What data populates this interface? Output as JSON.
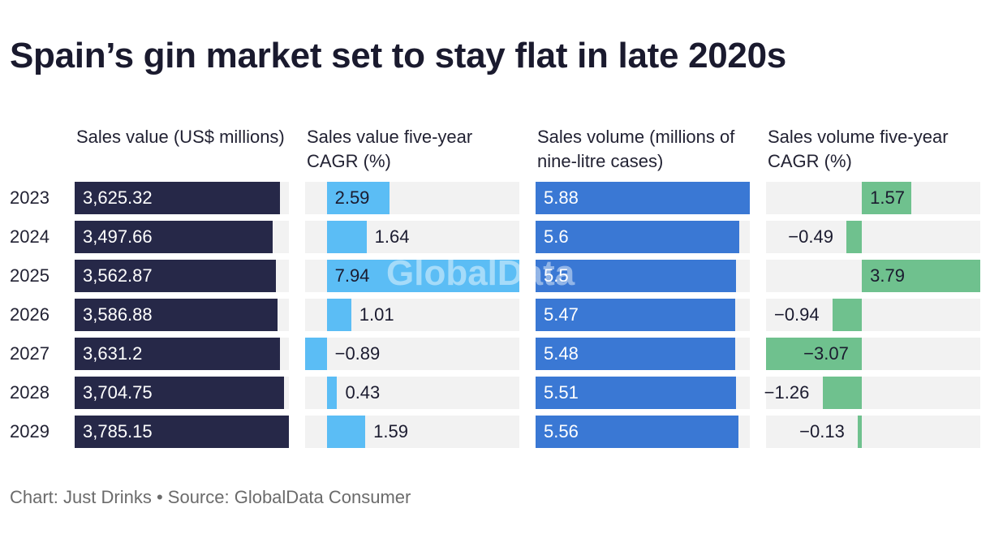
{
  "title": "Spain’s gin market set to stay flat in late 2020s",
  "footer": {
    "chart_credit": "Chart: Just Drinks",
    "separator": "•",
    "source": "Source: GlobalData Consumer"
  },
  "watermark": "GlobalData",
  "colors": {
    "sales_value": "#262848",
    "sales_value_cagr": "#5bbdf5",
    "sales_volume": "#3a78d4",
    "sales_volume_cagr": "#6fc18e",
    "track": "#f2f2f2",
    "light_text": "#ffffff",
    "dark_text": "#1b1b2f"
  },
  "chart_data": {
    "type": "bar",
    "orientation": "horizontal",
    "title": "Spain’s gin market set to stay flat in late 2020s",
    "categories": [
      "2023",
      "2024",
      "2025",
      "2026",
      "2027",
      "2028",
      "2029"
    ],
    "series": [
      {
        "name": "Sales value (US$ millions)",
        "values": [
          3625.32,
          3497.66,
          3562.87,
          3586.88,
          3631.2,
          3704.75,
          3785.15
        ],
        "labels": [
          "3,625.32",
          "3,497.66",
          "3,562.87",
          "3,586.88",
          "3,631.2",
          "3,704.75",
          "3,785.15"
        ],
        "xlim": [
          0,
          3785.15
        ]
      },
      {
        "name": "Sales value five-year CAGR (%)",
        "values": [
          2.59,
          1.64,
          7.94,
          1.01,
          -0.89,
          0.43,
          1.59
        ],
        "labels": [
          "2.59",
          "1.64",
          "7.94",
          "1.01",
          "−0.89",
          "0.43",
          "1.59"
        ],
        "xlim": [
          -0.89,
          7.94
        ]
      },
      {
        "name": "Sales volume (millions of nine-litre cases)",
        "values": [
          5.88,
          5.6,
          5.5,
          5.47,
          5.48,
          5.51,
          5.56
        ],
        "labels": [
          "5.88",
          "5.6",
          "5.5",
          "5.47",
          "5.48",
          "5.51",
          "5.56"
        ],
        "xlim": [
          0,
          5.88
        ]
      },
      {
        "name": "Sales volume five-year CAGR (%)",
        "values": [
          1.57,
          -0.49,
          3.79,
          -0.94,
          -3.07,
          -1.26,
          -0.13
        ],
        "labels": [
          "1.57",
          "−0.49",
          "3.79",
          "−0.94",
          "−3.07",
          "−1.26",
          "−0.13"
        ],
        "xlim": [
          -3.07,
          3.79
        ]
      }
    ]
  }
}
